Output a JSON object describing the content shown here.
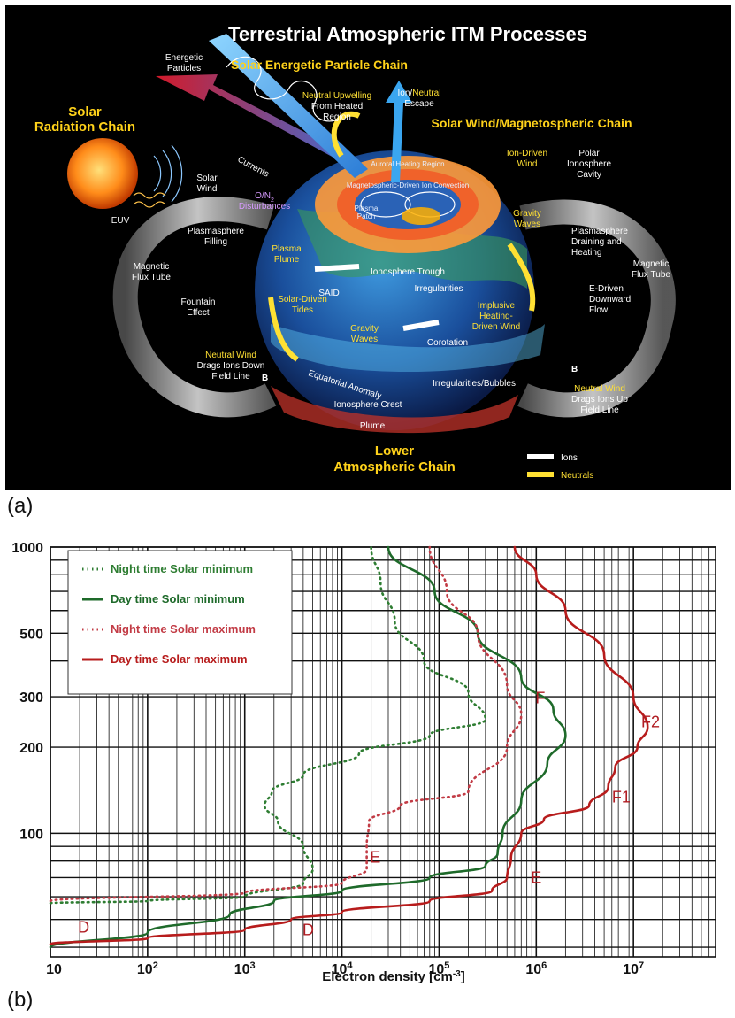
{
  "panel_a": {
    "letter": "(a)",
    "title": "Terrestrial Atmospheric ITM Processes",
    "chains": {
      "solar_energetic_particle": "Solar Energetic Particle Chain",
      "solar_radiation_1": "Solar",
      "solar_radiation_2": "Radiation Chain",
      "solar_wind_magnetospheric": "Solar Wind/Magnetospheric Chain",
      "lower_atmospheric_1": "Lower",
      "lower_atmospheric_2": "Atmospheric Chain"
    },
    "labels": {
      "energetic_particles_1": "Energetic",
      "energetic_particles_2": "Particles",
      "neutral_upwelling_1": "Neutral Upwelling",
      "neutral_upwelling_2": "From Heated",
      "neutral_upwelling_3": "Region",
      "ion_escape_1": "Ion/",
      "ion_escape_neutral": "Neutral",
      "ion_escape_2": "Escape",
      "currents": "Currents",
      "solar_wind_1": "Solar",
      "solar_wind_2": "Wind",
      "euv": "EUV",
      "o_n2_1": "O/N",
      "o_n2_sub": "2",
      "o_n2_2": "Disturbances",
      "auroral_heating": "Auroral Heating Region",
      "magnetospheric_convection": "Magnetospheric-Driven Ion Convection",
      "plasma_patch_1": "Plasma",
      "plasma_patch_2": "Patch",
      "ion_driven_wind_1": "Ion-Driven",
      "ion_driven_wind_2": "Wind",
      "polar_cavity_1": "Polar",
      "polar_cavity_2": "Ionosphere",
      "polar_cavity_3": "Cavity",
      "gravity_waves_n_1": "Gravity",
      "gravity_waves_n_2": "Waves",
      "plasmasphere_filling_1": "Plasmasphere",
      "plasmasphere_filling_2": "Filling",
      "plasma_plume_1": "Plasma",
      "plasma_plume_2": "Plume",
      "ionosphere_trough": "Ionosphere Trough",
      "plasmasphere_draining_1": "Plasmasphere",
      "plasmasphere_draining_2": "Draining and",
      "plasmasphere_draining_3": "Heating",
      "magnetic_flux_tube_l_1": "Magnetic",
      "magnetic_flux_tube_l_2": "Flux Tube",
      "magnetic_flux_tube_r_1": "Magnetic",
      "magnetic_flux_tube_r_2": "Flux Tube",
      "said": "SAID",
      "irregularities": "Irregularities",
      "fountain_effect_1": "Fountain",
      "fountain_effect_2": "Effect",
      "solar_driven_tides_1": "Solar-Driven",
      "solar_driven_tides_2": "Tides",
      "implusive_wind_1": "Implusive",
      "implusive_wind_2": "Heating-",
      "implusive_wind_3": "Driven Wind",
      "e_driven_flow_1": "E-Driven",
      "e_driven_flow_2": "Downward",
      "e_driven_flow_3": "Flow",
      "gravity_waves_s_1": "Gravity",
      "gravity_waves_s_2": "Waves",
      "corotation": "Corotation",
      "neutral_wind_l_1": "Neutral Wind",
      "neutral_wind_l_2": "Drags Ions Down",
      "neutral_wind_l_3": "Field Line",
      "equatorial_anomaly": "Equatorial Anomaly",
      "irregularities_bubbles": "Irregularities/Bubbles",
      "ionosphere_crest": "Ionosphere Crest",
      "b_vec_l": "B",
      "b_vec_r": "B",
      "neutral_wind_r_1": "Neutral Wind",
      "neutral_wind_r_2": "Drags Ions Up",
      "neutral_wind_r_3": "Field Line",
      "plume": "Plume"
    },
    "key": {
      "ions": "Ions",
      "neutrals": "Neutrals"
    },
    "colors": {
      "background": "#000000",
      "chain_text": "#ffd21a",
      "ocean": "#1a4f9c",
      "aurora": "#ff7a1a"
    }
  },
  "panel_b": {
    "letter": "(b)",
    "chart_data": {
      "type": "line",
      "xlabel_main": "Electron density [cm",
      "xlabel_sup": "-3",
      "xlabel_end": "]",
      "ylabel": "",
      "xscale": "log",
      "yscale": "log",
      "xlim": [
        10,
        70000000
      ],
      "ylim": [
        37,
        1000
      ],
      "grid": true,
      "legend_position": "top-left",
      "x_ticks": [
        {
          "value": 10,
          "base": "10",
          "exp": ""
        },
        {
          "value": 100,
          "base": "10",
          "exp": "2"
        },
        {
          "value": 1000,
          "base": "10",
          "exp": "3"
        },
        {
          "value": 10000,
          "base": "10",
          "exp": "4"
        },
        {
          "value": 100000,
          "base": "10",
          "exp": "5"
        },
        {
          "value": 1000000,
          "base": "10",
          "exp": "6"
        },
        {
          "value": 10000000,
          "base": "10",
          "exp": "7"
        }
      ],
      "y_ticks": [
        {
          "value": 1000,
          "label": "1000"
        },
        {
          "value": 500,
          "label": "500"
        },
        {
          "value": 300,
          "label": "300"
        },
        {
          "value": 200,
          "label": "200"
        },
        {
          "value": 100,
          "label": "100"
        }
      ],
      "series": [
        {
          "name": "Night time Solar minimum",
          "color": "#2e7d32",
          "style": "dotted",
          "points": [
            [
              10,
              57
            ],
            [
              100,
              58
            ],
            [
              1000,
              60
            ],
            [
              4000,
              67
            ],
            [
              5000,
              75
            ],
            [
              4000,
              90
            ],
            [
              2200,
              110
            ],
            [
              1600,
              125
            ],
            [
              1900,
              140
            ],
            [
              4000,
              160
            ],
            [
              15000,
              190
            ],
            [
              80000,
              220
            ],
            [
              300000,
              250
            ],
            [
              200000,
              310
            ],
            [
              70000,
              400
            ],
            [
              35000,
              550
            ],
            [
              25000,
              750
            ],
            [
              20000,
              1000
            ]
          ]
        },
        {
          "name": "Day time Solar minimum",
          "color": "#1e6a2a",
          "style": "solid",
          "points": [
            [
              10,
              40
            ],
            [
              100,
              45
            ],
            [
              700,
              52
            ],
            [
              2000,
              58
            ],
            [
              10000,
              63
            ],
            [
              80000,
              70
            ],
            [
              300000,
              77
            ],
            [
              400000,
              85
            ],
            [
              450000,
              100
            ],
            [
              700000,
              130
            ],
            [
              1300000,
              175
            ],
            [
              2000000,
              220
            ],
            [
              1500000,
              270
            ],
            [
              700000,
              350
            ],
            [
              250000,
              500
            ],
            [
              90000,
              700
            ],
            [
              30000,
              1000
            ]
          ]
        },
        {
          "name": "Night time Solar maximum",
          "color": "#c23b45",
          "style": "dotted",
          "points": [
            [
              10,
              58
            ],
            [
              1000,
              62
            ],
            [
              10000,
              67
            ],
            [
              18000,
              75
            ],
            [
              18000,
              90
            ],
            [
              19000,
              110
            ],
            [
              40000,
              125
            ],
            [
              200000,
              140
            ],
            [
              500000,
              200
            ],
            [
              700000,
              260
            ],
            [
              500000,
              330
            ],
            [
              250000,
              500
            ],
            [
              120000,
              700
            ],
            [
              80000,
              1000
            ]
          ]
        },
        {
          "name": "Day time Solar maximum",
          "color": "#b71c1c",
          "style": "solid",
          "points": [
            [
              10,
              41
            ],
            [
              100,
              43
            ],
            [
              1000,
              46
            ],
            [
              3000,
              50
            ],
            [
              10000,
              53
            ],
            [
              80000,
              58
            ],
            [
              350000,
              63
            ],
            [
              500000,
              70
            ],
            [
              550000,
              82
            ],
            [
              700000,
              100
            ],
            [
              1200000,
              112
            ],
            [
              3500000,
              125
            ],
            [
              5500000,
              145
            ],
            [
              6500000,
              170
            ],
            [
              11000000,
              200
            ],
            [
              14000000,
              235
            ],
            [
              10000000,
              300
            ],
            [
              5000000,
              420
            ],
            [
              2000000,
              600
            ],
            [
              1000000,
              800
            ],
            [
              600000,
              1000
            ]
          ]
        }
      ],
      "curve_labels": [
        {
          "text": "D",
          "x": 22,
          "y": 45
        },
        {
          "text": "D",
          "x": 4500,
          "y": 44
        },
        {
          "text": "E",
          "x": 22000,
          "y": 79
        },
        {
          "text": "E",
          "x": 1000000,
          "y": 67
        },
        {
          "text": "F",
          "x": 1100000,
          "y": 285
        },
        {
          "text": "F2",
          "x": 15000000,
          "y": 235
        },
        {
          "text": "F1",
          "x": 7500000,
          "y": 128
        }
      ]
    }
  }
}
